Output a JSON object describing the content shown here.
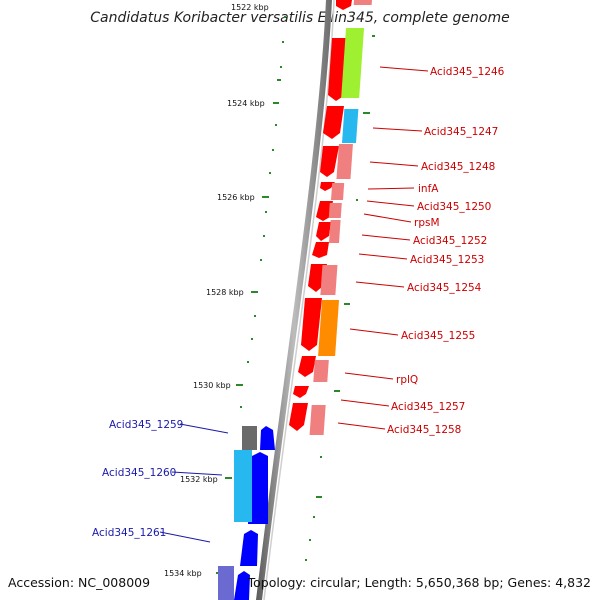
{
  "title": "Candidatus Koribacter versatilis Ellin345, complete genome",
  "footer": {
    "accession": "Accession: NC_008009",
    "summary": "Topology: circular; Length: 5,650,368 bp; Genes: 4,832"
  },
  "ruler": [
    "1522 kbp",
    "1524 kbp",
    "1526 kbp",
    "1528 kbp",
    "1530 kbp",
    "1532 kbp",
    "1534 kbp"
  ],
  "genes_right": [
    "Acid345_1246",
    "Acid345_1247",
    "Acid345_1248",
    "infA",
    "Acid345_1250",
    "rpsM",
    "Acid345_1252",
    "Acid345_1253",
    "Acid345_1254",
    "Acid345_1255",
    "rplQ",
    "Acid345_1257",
    "Acid345_1258"
  ],
  "genes_left": [
    "Acid345_1259",
    "Acid345_1260",
    "Acid345_1261"
  ],
  "colors": {
    "forward_gene": "#ff0000",
    "reverse_gene": "#0000ff",
    "label_forward": "#cc0000",
    "label_reverse": "#1a1aaa",
    "tick": "#2a8a2a",
    "backbone": "#888888"
  }
}
